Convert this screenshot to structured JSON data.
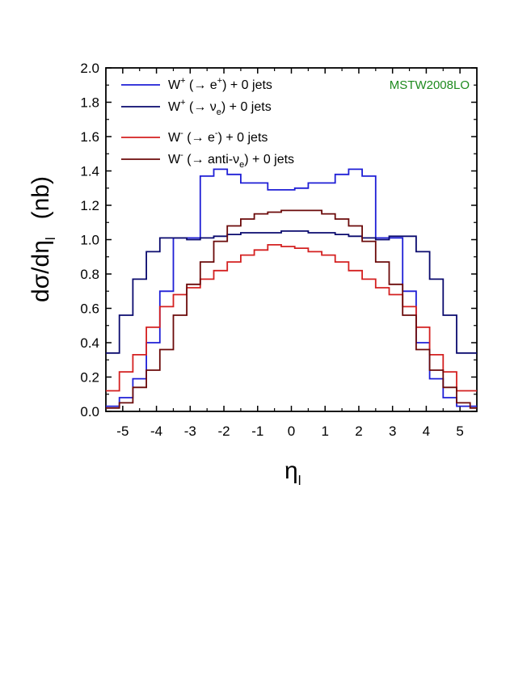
{
  "chart_data": {
    "type": "line",
    "step": true,
    "x_edges": [
      -5.5,
      -5.1,
      -4.7,
      -4.3,
      -3.9,
      -3.5,
      -3.1,
      -2.7,
      -2.3,
      -1.9,
      -1.5,
      -1.1,
      -0.7,
      -0.3,
      0.1,
      0.5,
      0.9,
      1.3,
      1.7,
      2.1,
      2.5,
      2.9,
      3.3,
      3.7,
      4.1,
      4.5,
      4.9,
      5.3,
      5.5
    ],
    "series": [
      {
        "name": "W+ (→ e+) + 0 jets",
        "color": "#1f1fd6",
        "values": [
          0.03,
          0.08,
          0.19,
          0.4,
          0.7,
          1.01,
          1.01,
          1.37,
          1.41,
          1.38,
          1.33,
          1.33,
          1.29,
          1.29,
          1.3,
          1.33,
          1.33,
          1.38,
          1.41,
          1.37,
          1.01,
          1.01,
          0.7,
          0.4,
          0.19,
          0.08,
          0.03,
          0.03
        ]
      },
      {
        "name": "W+ (→ νe) + 0 jets",
        "color": "#0a0a6e",
        "values": [
          0.34,
          0.56,
          0.77,
          0.93,
          1.01,
          1.01,
          1.0,
          1.01,
          1.02,
          1.03,
          1.04,
          1.04,
          1.04,
          1.05,
          1.05,
          1.04,
          1.04,
          1.03,
          1.02,
          1.01,
          1.0,
          1.02,
          1.02,
          0.93,
          0.77,
          0.56,
          0.34,
          0.34
        ]
      },
      {
        "name": "W- (→ e-) + 0 jets",
        "color": "#d42020",
        "values": [
          0.12,
          0.23,
          0.33,
          0.49,
          0.61,
          0.68,
          0.72,
          0.77,
          0.82,
          0.87,
          0.91,
          0.94,
          0.97,
          0.96,
          0.95,
          0.93,
          0.91,
          0.87,
          0.82,
          0.77,
          0.72,
          0.68,
          0.61,
          0.49,
          0.33,
          0.23,
          0.12,
          0.12
        ]
      },
      {
        "name": "W- (→ anti-νe) + 0 jets",
        "color": "#6b0a0a",
        "values": [
          0.02,
          0.05,
          0.14,
          0.24,
          0.36,
          0.56,
          0.74,
          0.87,
          0.99,
          1.08,
          1.12,
          1.15,
          1.16,
          1.17,
          1.17,
          1.17,
          1.15,
          1.12,
          1.08,
          0.99,
          0.87,
          0.74,
          0.56,
          0.36,
          0.24,
          0.14,
          0.05,
          0.02
        ]
      }
    ],
    "xlim": [
      -5.5,
      5.5
    ],
    "ylim": [
      0,
      2.0
    ],
    "xticks": [
      "-5",
      "-4",
      "-3",
      "-2",
      "-1",
      "0",
      "1",
      "2",
      "3",
      "4",
      "5"
    ],
    "yticks": [
      "0.0",
      "0.2",
      "0.4",
      "0.6",
      "0.8",
      "1.0",
      "1.2",
      "1.4",
      "1.6",
      "1.8",
      "2.0"
    ],
    "xlabel": "ηl",
    "ylabel": "dσ/dηl   (nb)",
    "annotation": "MSTW2008LO",
    "annotation_color": "#1e8a1e",
    "legend_position": "top-left",
    "grid": false
  }
}
